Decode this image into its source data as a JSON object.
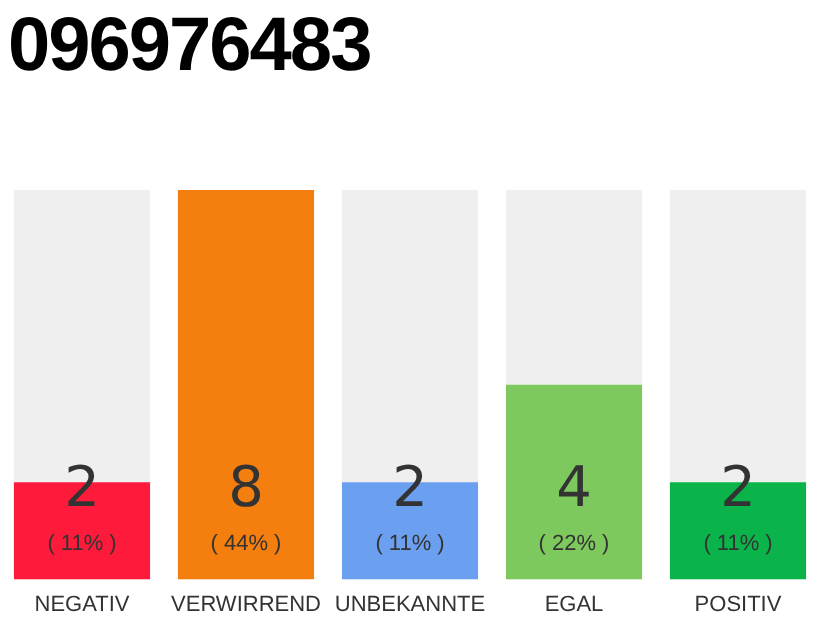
{
  "chart_data": {
    "type": "bar",
    "title": "096976483",
    "categories": [
      "NEGATIV",
      "VERWIRREND",
      "UNBEKANNTE",
      "EGAL",
      "POSITIV"
    ],
    "values": [
      2,
      8,
      2,
      4,
      2
    ],
    "colors": [
      "#fe1a3b",
      "#f47e0e",
      "#6b9ff0",
      "#7ec95e",
      "#0bb44a"
    ],
    "value_labels": [
      "2\n( 11% )",
      "8\n( 44% )",
      "2\n( 11% )",
      "4\n( 22% )",
      "2\n( 11% )"
    ],
    "ylim": [
      0,
      8
    ],
    "tick_labels": "x",
    "grid": false,
    "legend": false
  }
}
